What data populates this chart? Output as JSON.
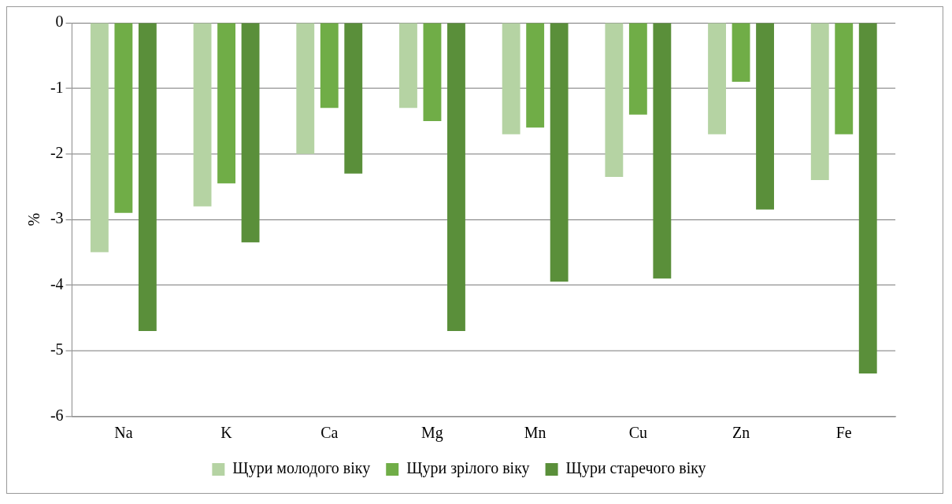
{
  "chart_data": {
    "type": "bar",
    "ylabel": "%",
    "categories": [
      "Na",
      "K",
      "Ca",
      "Mg",
      "Mn",
      "Cu",
      "Zn",
      "Fe"
    ],
    "series": [
      {
        "name": "Щури молодого віку",
        "color": "#b5d3a3",
        "values": [
          -3.5,
          -2.8,
          -2.0,
          -1.3,
          -1.7,
          -2.35,
          -1.7,
          -2.4
        ]
      },
      {
        "name": "Щури зрілого віку",
        "color": "#70ad47",
        "values": [
          -2.9,
          -2.45,
          -1.3,
          -1.5,
          -1.6,
          -1.4,
          -0.9,
          -1.7
        ]
      },
      {
        "name": "Щури старечого віку",
        "color": "#5a8f3a",
        "values": [
          -4.7,
          -3.35,
          -2.3,
          -4.7,
          -3.95,
          -3.9,
          -2.85,
          -5.35
        ]
      }
    ],
    "ylim": [
      -6,
      0
    ],
    "yticks": [
      0,
      -1,
      -2,
      -3,
      -4,
      -5,
      -6
    ],
    "grid": "y",
    "legend": "bottom"
  }
}
